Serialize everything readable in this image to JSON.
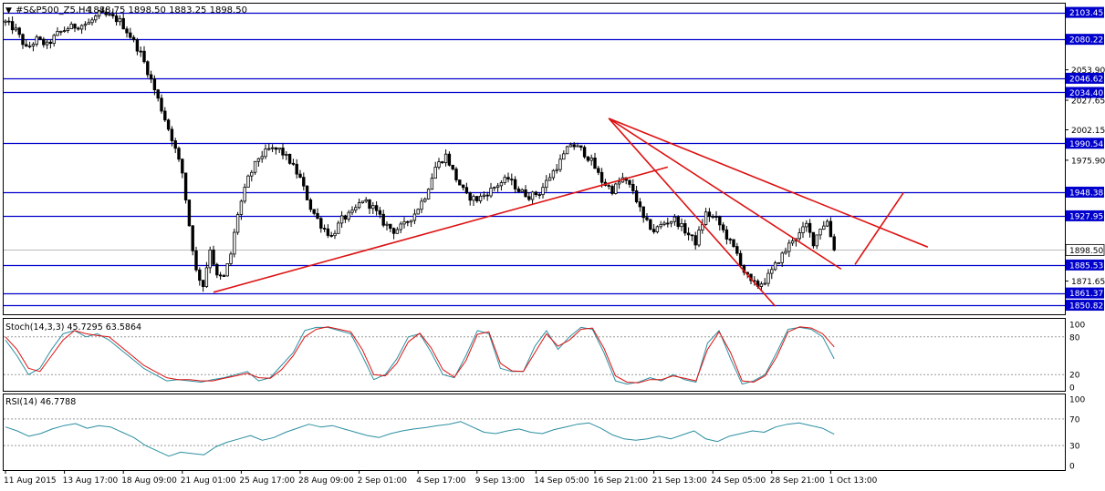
{
  "window": {
    "title_symbol": "#S&P500_Z5,H4",
    "ohlc": "1888.75 1898.50 1883.25 1898.50"
  },
  "colors": {
    "background": "#ffffff",
    "candle": "#000000",
    "level_line": "#0000cc",
    "trend_line": "#dd1111",
    "stoch_main": "#2a8fa0",
    "stoch_signal": "#dd1111",
    "rsi_line": "#2a8fa0",
    "price_tag_bg": "#0000cc",
    "price_tag_text": "#ffffff",
    "current_price_bg": "#ffffff",
    "axis_text": "#000000",
    "dotted": "#999999"
  },
  "chart_data": [
    {
      "type": "candlestick",
      "panel": "price",
      "title": "#S&P500_Z5,H4",
      "y_range": [
        1843,
        2111
      ],
      "yticks": [
        "2053.90",
        "2027.65",
        "2002.15",
        "1975.90",
        "1871.65"
      ],
      "levels": [
        "2103.45",
        "2080.22",
        "2046.62",
        "2034.40",
        "1990.54",
        "1948.38",
        "1927.95",
        "1885.53",
        "1861.37",
        "1850.82"
      ],
      "current_price": "1898.50",
      "x_labels": [
        "11 Aug 2015",
        "13 Aug 17:00",
        "18 Aug 09:00",
        "21 Aug 01:00",
        "25 Aug 17:00",
        "28 Aug 09:00",
        "2 Sep 01:00",
        "4 Sep 17:00",
        "9 Sep 13:00",
        "14 Sep 05:00",
        "16 Sep 21:00",
        "21 Sep 13:00",
        "24 Sep 05:00",
        "28 Sep 21:00",
        "1 Oct 13:00"
      ],
      "price_path": [
        [
          0,
          2095
        ],
        [
          3,
          2088
        ],
        [
          6,
          2072
        ],
        [
          9,
          2080
        ],
        [
          12,
          2075
        ],
        [
          15,
          2085
        ],
        [
          18,
          2090
        ],
        [
          21,
          2092
        ],
        [
          24,
          2094
        ],
        [
          27,
          2102
        ],
        [
          30,
          2100
        ],
        [
          33,
          2096
        ],
        [
          36,
          2083
        ],
        [
          39,
          2068
        ],
        [
          42,
          2045
        ],
        [
          45,
          2020
        ],
        [
          48,
          1995
        ],
        [
          51,
          1965
        ],
        [
          53,
          1920
        ],
        [
          55,
          1880
        ],
        [
          57,
          1868
        ],
        [
          59,
          1900
        ],
        [
          61,
          1875
        ],
        [
          63,
          1875
        ],
        [
          65,
          1895
        ],
        [
          67,
          1930
        ],
        [
          70,
          1960
        ],
        [
          73,
          1978
        ],
        [
          76,
          1985
        ],
        [
          79,
          1985
        ],
        [
          82,
          1975
        ],
        [
          85,
          1960
        ],
        [
          88,
          1935
        ],
        [
          91,
          1920
        ],
        [
          94,
          1910
        ],
        [
          97,
          1925
        ],
        [
          100,
          1930
        ],
        [
          103,
          1942
        ],
        [
          106,
          1935
        ],
        [
          109,
          1922
        ],
        [
          112,
          1915
        ],
        [
          115,
          1920
        ],
        [
          118,
          1930
        ],
        [
          121,
          1945
        ],
        [
          124,
          1970
        ],
        [
          127,
          1980
        ],
        [
          130,
          1960
        ],
        [
          133,
          1945
        ],
        [
          136,
          1942
        ],
        [
          139,
          1948
        ],
        [
          142,
          1955
        ],
        [
          145,
          1960
        ],
        [
          148,
          1950
        ],
        [
          151,
          1945
        ],
        [
          154,
          1948
        ],
        [
          157,
          1962
        ],
        [
          160,
          1975
        ],
        [
          163,
          1990
        ],
        [
          166,
          1985
        ],
        [
          169,
          1975
        ],
        [
          172,
          1958
        ],
        [
          175,
          1950
        ],
        [
          178,
          1960
        ],
        [
          181,
          1950
        ],
        [
          184,
          1925
        ],
        [
          187,
          1915
        ],
        [
          190,
          1922
        ],
        [
          193,
          1925
        ],
        [
          196,
          1915
        ],
        [
          199,
          1905
        ],
        [
          202,
          1930
        ],
        [
          205,
          1925
        ],
        [
          208,
          1910
        ],
        [
          211,
          1895
        ],
        [
          213,
          1880
        ],
        [
          215,
          1870
        ],
        [
          217,
          1868
        ],
        [
          219,
          1872
        ],
        [
          221,
          1880
        ],
        [
          223,
          1890
        ],
        [
          225,
          1898
        ],
        [
          227,
          1908
        ],
        [
          229,
          1912
        ],
        [
          231,
          1920
        ],
        [
          233,
          1905
        ],
        [
          235,
          1918
        ],
        [
          237,
          1923
        ],
        [
          239,
          1898
        ]
      ],
      "last_index": 239
    },
    {
      "type": "line",
      "panel": "stochastic",
      "label": "Stoch(14,3,3) 45.7295 63.5864",
      "y_range": [
        0,
        100
      ],
      "levels": [
        80,
        20
      ],
      "yticks": [
        "100",
        "80",
        "20",
        "0"
      ],
      "series": [
        {
          "name": "main",
          "values": [
            75,
            50,
            20,
            30,
            60,
            85,
            90,
            80,
            85,
            75,
            60,
            45,
            30,
            20,
            10,
            12,
            10,
            8,
            12,
            15,
            20,
            25,
            10,
            15,
            35,
            55,
            90,
            95,
            95,
            90,
            85,
            50,
            12,
            20,
            45,
            80,
            85,
            55,
            20,
            15,
            50,
            90,
            85,
            30,
            25,
            25,
            65,
            90,
            60,
            80,
            95,
            92,
            55,
            10,
            5,
            8,
            15,
            10,
            20,
            12,
            8,
            70,
            90,
            45,
            5,
            10,
            20,
            55,
            92,
            95,
            92,
            80,
            45
          ]
        },
        {
          "name": "signal",
          "values": [
            80,
            60,
            30,
            25,
            50,
            75,
            90,
            85,
            82,
            80,
            65,
            50,
            35,
            25,
            15,
            12,
            12,
            10,
            10,
            14,
            18,
            22,
            15,
            14,
            28,
            50,
            80,
            92,
            96,
            92,
            88,
            60,
            20,
            18,
            38,
            72,
            86,
            62,
            28,
            16,
            42,
            84,
            88,
            38,
            26,
            25,
            55,
            85,
            65,
            75,
            92,
            94,
            62,
            18,
            8,
            7,
            12,
            12,
            18,
            14,
            10,
            60,
            88,
            55,
            10,
            8,
            18,
            48,
            88,
            96,
            94,
            85,
            64
          ]
        }
      ]
    },
    {
      "type": "line",
      "panel": "rsi",
      "label": "RSI(14) 46.7788",
      "y_range": [
        0,
        100
      ],
      "levels": [
        70,
        30
      ],
      "yticks": [
        "100",
        "70",
        "30",
        "0"
      ],
      "series": [
        {
          "name": "rsi",
          "values": [
            58,
            52,
            44,
            48,
            55,
            60,
            63,
            56,
            60,
            58,
            50,
            42,
            30,
            22,
            14,
            20,
            18,
            16,
            28,
            35,
            40,
            45,
            38,
            42,
            50,
            56,
            62,
            58,
            60,
            55,
            50,
            45,
            42,
            48,
            52,
            55,
            57,
            60,
            62,
            66,
            58,
            50,
            48,
            52,
            55,
            50,
            48,
            54,
            58,
            62,
            64,
            56,
            46,
            40,
            38,
            40,
            44,
            40,
            46,
            52,
            40,
            36,
            44,
            48,
            52,
            50,
            58,
            62,
            64,
            60,
            56,
            47
          ]
        }
      ]
    }
  ]
}
